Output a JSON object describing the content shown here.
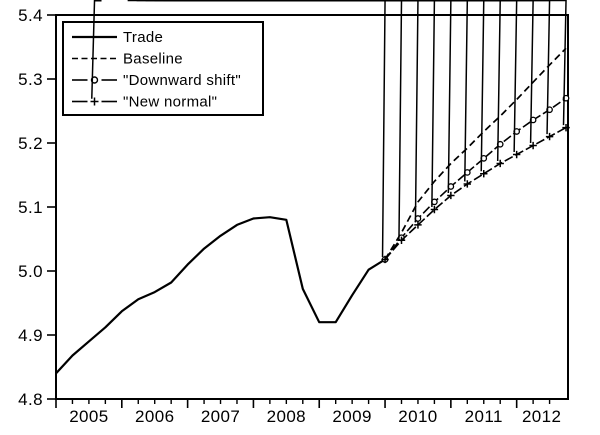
{
  "chart_data": {
    "type": "line",
    "title": "",
    "xlabel": "",
    "ylabel": "",
    "xlim": [
      2005,
      2012.78
    ],
    "ylim": [
      4.8,
      5.4
    ],
    "grid": false,
    "legend_position": "top-left",
    "colors": {
      "foreground": "#000000",
      "background": "#ffffff"
    },
    "y_ticks": [
      4.8,
      4.9,
      5.0,
      5.1,
      5.2,
      5.3,
      5.4
    ],
    "y_tick_labels": [
      "4.8",
      "4.9",
      "5.0",
      "5.1",
      "5.2",
      "5.3",
      "5.4"
    ],
    "x_major_ticks": [
      2005,
      2006,
      2007,
      2008,
      2009,
      2010,
      2011,
      2012
    ],
    "x_minor_tick_step": 0.25,
    "x_minor_tick_end": 2012.5,
    "x_tick_labels": [
      {
        "label": "2005",
        "t": 2005.5
      },
      {
        "label": "2006",
        "t": 2006.5
      },
      {
        "label": "2007",
        "t": 2007.5
      },
      {
        "label": "2008",
        "t": 2008.5
      },
      {
        "label": "2009",
        "t": 2009.5
      },
      {
        "label": "2010",
        "t": 2010.5
      },
      {
        "label": "2011",
        "t": 2011.5
      },
      {
        "label": "2012",
        "t": 2012.38
      }
    ],
    "series": [
      {
        "name": "Trade",
        "style": "solid",
        "marker": "none",
        "x": [
          2005.0,
          2005.25,
          2005.5,
          2005.75,
          2006.0,
          2006.25,
          2006.5,
          2006.75,
          2007.0,
          2007.25,
          2007.5,
          2007.75,
          2008.0,
          2008.25,
          2008.5,
          2008.75,
          2009.0,
          2009.25,
          2009.5,
          2009.75,
          2010.0
        ],
        "y": [
          4.84,
          4.868,
          4.89,
          4.912,
          4.937,
          4.956,
          4.967,
          4.982,
          5.01,
          5.035,
          5.055,
          5.072,
          5.082,
          5.084,
          5.08,
          4.972,
          4.92,
          4.92,
          4.962,
          5.002,
          5.018
        ]
      },
      {
        "name": "Baseline",
        "style": "dashed",
        "marker": "none",
        "x": [
          2010.0,
          2010.25,
          2010.5,
          2010.75,
          2011.0,
          2011.25,
          2011.5,
          2011.75,
          2012.0,
          2012.25,
          2012.5,
          2012.75
        ],
        "y": [
          5.018,
          5.06,
          5.108,
          5.14,
          5.168,
          5.192,
          5.218,
          5.242,
          5.268,
          5.295,
          5.322,
          5.348
        ]
      },
      {
        "name": "\"Downward shift\"",
        "style": "dash-marked",
        "marker": "circle",
        "x": [
          2010.0,
          2010.25,
          2010.5,
          2010.75,
          2011.0,
          2011.25,
          2011.5,
          2011.75,
          2012.0,
          2012.25,
          2012.5,
          2012.75
        ],
        "y": [
          5.018,
          5.052,
          5.082,
          5.108,
          5.132,
          5.154,
          5.176,
          5.198,
          5.218,
          5.236,
          5.252,
          5.27
        ]
      },
      {
        "name": "\"New normal\"",
        "style": "dash-marked",
        "marker": "asterisk",
        "x": [
          2010.0,
          2010.25,
          2010.5,
          2010.75,
          2011.0,
          2011.25,
          2011.5,
          2011.75,
          2012.0,
          2012.25,
          2012.5,
          2012.75
        ],
        "y": [
          5.018,
          5.048,
          5.072,
          5.096,
          5.118,
          5.136,
          5.152,
          5.168,
          5.182,
          5.196,
          5.21,
          5.224
        ]
      }
    ],
    "legend": [
      {
        "label": "Trade",
        "sample": "solid"
      },
      {
        "label": "Baseline",
        "sample": "dashed"
      },
      {
        "label": "\"Downward shift\"",
        "sample": "dash-circle"
      },
      {
        "label": "\"New normal\"",
        "sample": "dash-asterisk"
      }
    ]
  }
}
